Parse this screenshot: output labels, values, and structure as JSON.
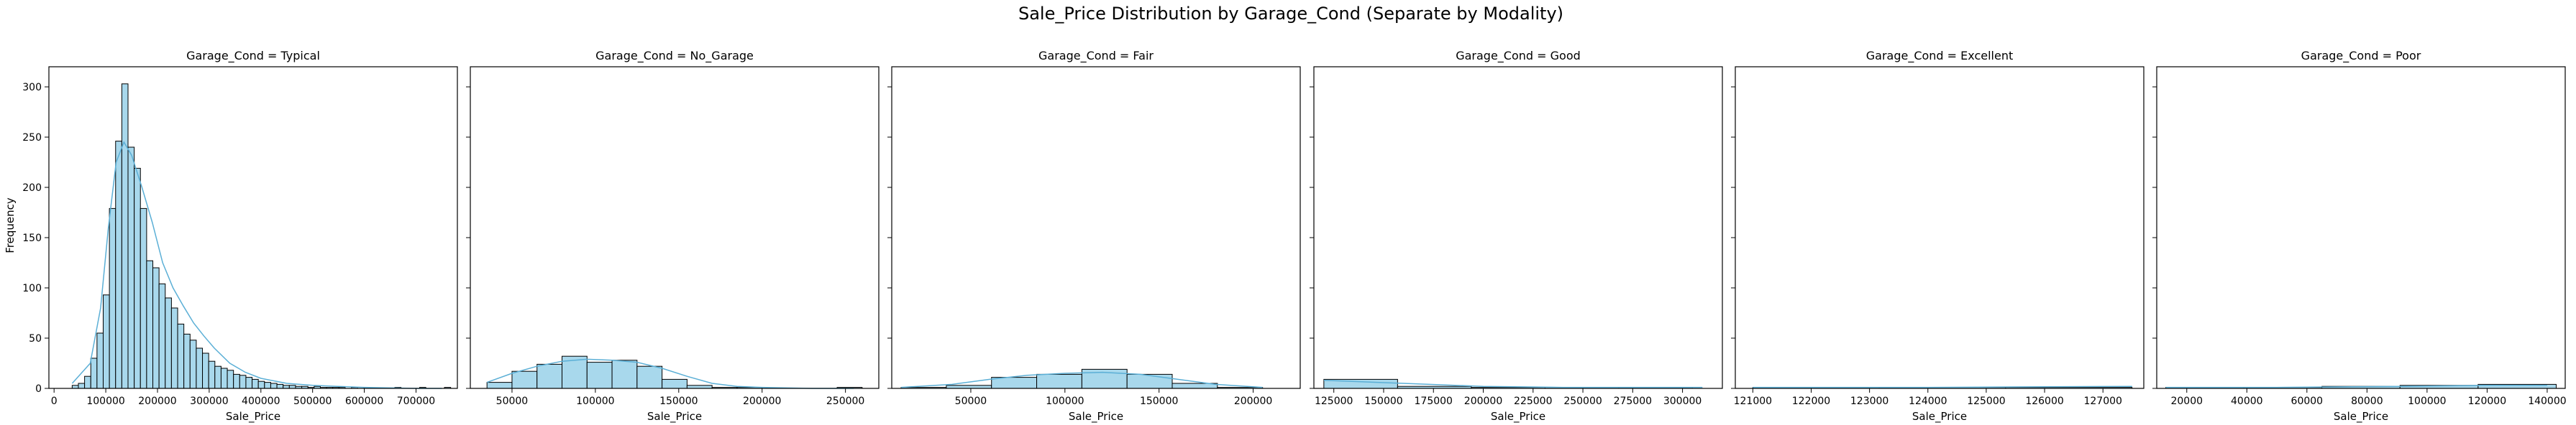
{
  "figure": {
    "title": "Sale_Price Distribution by Garage_Cond (Separate by Modality)",
    "ylabel": "Frequency",
    "colors": {
      "bar_fill": "#a8d8ec",
      "bar_edge": "#000000",
      "kde_line": "#5bafd6"
    }
  },
  "chart_data": [
    {
      "type": "bar",
      "title": "Garage_Cond = Typical",
      "xlabel": "Sale_Price",
      "ylabel": "Frequency",
      "xlim": [
        -10000,
        780000
      ],
      "ylim": [
        0,
        320
      ],
      "xticks": [
        0,
        100000,
        200000,
        300000,
        400000,
        500000,
        600000,
        700000
      ],
      "xticklabels": [
        "0",
        "100000",
        "200000",
        "300000",
        "400000",
        "500000",
        "600000",
        "700000"
      ],
      "yticks": [
        0,
        50,
        100,
        150,
        200,
        250,
        300
      ],
      "yticklabels": [
        "0",
        "50",
        "100",
        "150",
        "200",
        "250",
        "300"
      ],
      "bin_start": 35000,
      "bin_width": 12000,
      "counts": [
        3,
        5,
        12,
        30,
        55,
        93,
        179,
        246,
        303,
        240,
        219,
        179,
        127,
        120,
        104,
        90,
        80,
        64,
        54,
        48,
        40,
        35,
        27,
        22,
        20,
        18,
        14,
        13,
        11,
        9,
        7,
        6,
        5,
        4,
        3,
        3,
        2,
        2,
        1,
        2,
        1,
        1,
        1,
        1,
        0,
        1,
        0,
        1,
        0,
        0,
        0,
        0,
        1,
        0,
        0,
        0,
        1,
        0,
        0,
        0,
        1
      ],
      "kde": [
        [
          35000,
          5
        ],
        [
          70000,
          25
        ],
        [
          90000,
          80
        ],
        [
          105000,
          160
        ],
        [
          120000,
          225
        ],
        [
          135000,
          245
        ],
        [
          150000,
          232
        ],
        [
          170000,
          200
        ],
        [
          190000,
          165
        ],
        [
          210000,
          125
        ],
        [
          230000,
          100
        ],
        [
          250000,
          82
        ],
        [
          270000,
          65
        ],
        [
          290000,
          52
        ],
        [
          310000,
          40
        ],
        [
          340000,
          25
        ],
        [
          370000,
          16
        ],
        [
          400000,
          10
        ],
        [
          450000,
          5
        ],
        [
          500000,
          3
        ],
        [
          550000,
          2
        ],
        [
          600000,
          1
        ],
        [
          700000,
          0
        ],
        [
          750000,
          0
        ]
      ]
    },
    {
      "type": "bar",
      "title": "Garage_Cond = No_Garage",
      "xlabel": "Sale_Price",
      "xlim": [
        25000,
        270000
      ],
      "ylim": [
        0,
        320
      ],
      "xticks": [
        50000,
        100000,
        150000,
        200000,
        250000
      ],
      "xticklabels": [
        "50000",
        "100000",
        "150000",
        "200000",
        "250000"
      ],
      "bin_start": 35000,
      "bin_width": 15000,
      "counts": [
        6,
        17,
        24,
        32,
        26,
        28,
        22,
        9,
        3,
        1,
        1,
        0,
        0,
        0,
        1
      ],
      "kde": [
        [
          35000,
          6
        ],
        [
          50000,
          15
        ],
        [
          65000,
          22
        ],
        [
          80000,
          27
        ],
        [
          95000,
          29
        ],
        [
          110000,
          28
        ],
        [
          125000,
          26
        ],
        [
          140000,
          20
        ],
        [
          155000,
          12
        ],
        [
          170000,
          5
        ],
        [
          185000,
          2
        ],
        [
          200000,
          1
        ],
        [
          230000,
          0
        ],
        [
          255000,
          0
        ]
      ]
    },
    {
      "type": "bar",
      "title": "Garage_Cond = Fair",
      "xlabel": "Sale_Price",
      "xlim": [
        8000,
        225000
      ],
      "ylim": [
        0,
        320
      ],
      "xticks": [
        50000,
        100000,
        150000,
        200000
      ],
      "xticklabels": [
        "50000",
        "100000",
        "150000",
        "200000"
      ],
      "bin_start": 13000,
      "bin_width": 24000,
      "counts": [
        1,
        3,
        11,
        14,
        19,
        14,
        5,
        1
      ],
      "kde": [
        [
          13000,
          1
        ],
        [
          40000,
          4
        ],
        [
          60000,
          9
        ],
        [
          80000,
          13
        ],
        [
          100000,
          15
        ],
        [
          120000,
          16
        ],
        [
          140000,
          14
        ],
        [
          160000,
          9
        ],
        [
          180000,
          4
        ],
        [
          205000,
          1
        ]
      ]
    },
    {
      "type": "bar",
      "title": "Garage_Cond = Good",
      "xlabel": "Sale_Price",
      "xlim": [
        115000,
        320000
      ],
      "ylim": [
        0,
        320
      ],
      "xticks": [
        125000,
        150000,
        175000,
        200000,
        225000,
        250000,
        275000,
        300000
      ],
      "xticklabels": [
        "125000",
        "150000",
        "175000",
        "200000",
        "225000",
        "250000",
        "275000",
        "300000"
      ],
      "bin_start": 120000,
      "bin_width": 37000,
      "counts": [
        9,
        2,
        1,
        1,
        1
      ],
      "kde": [
        [
          120000,
          8
        ],
        [
          160000,
          5
        ],
        [
          200000,
          2
        ],
        [
          240000,
          1
        ],
        [
          280000,
          1
        ],
        [
          310000,
          1
        ]
      ]
    },
    {
      "type": "bar",
      "title": "Garage_Cond = Excellent",
      "xlabel": "Sale_Price",
      "xlim": [
        120700,
        127700
      ],
      "ylim": [
        0,
        320
      ],
      "xticks": [
        121000,
        122000,
        123000,
        124000,
        125000,
        126000,
        127000
      ],
      "xticklabels": [
        "121000",
        "122000",
        "123000",
        "124000",
        "125000",
        "126000",
        "127000"
      ],
      "bin_start": 121000,
      "bin_width": 2166,
      "counts": [
        1,
        1,
        1
      ],
      "kde": [
        [
          121000,
          1
        ],
        [
          124000,
          1
        ],
        [
          127500,
          2
        ]
      ]
    },
    {
      "type": "bar",
      "title": "Garage_Cond = Poor",
      "xlabel": "Sale_Price",
      "xlim": [
        10000,
        146000
      ],
      "ylim": [
        0,
        320
      ],
      "xticks": [
        20000,
        40000,
        60000,
        80000,
        100000,
        120000,
        140000
      ],
      "xticklabels": [
        "20000",
        "40000",
        "60000",
        "80000",
        "100000",
        "120000",
        "140000"
      ],
      "bin_start": 13000,
      "bin_width": 26000,
      "counts": [
        1,
        1,
        2,
        3,
        4
      ],
      "kde": [
        [
          13000,
          1
        ],
        [
          50000,
          1
        ],
        [
          90000,
          2
        ],
        [
          120000,
          3
        ],
        [
          140000,
          3
        ]
      ]
    }
  ]
}
